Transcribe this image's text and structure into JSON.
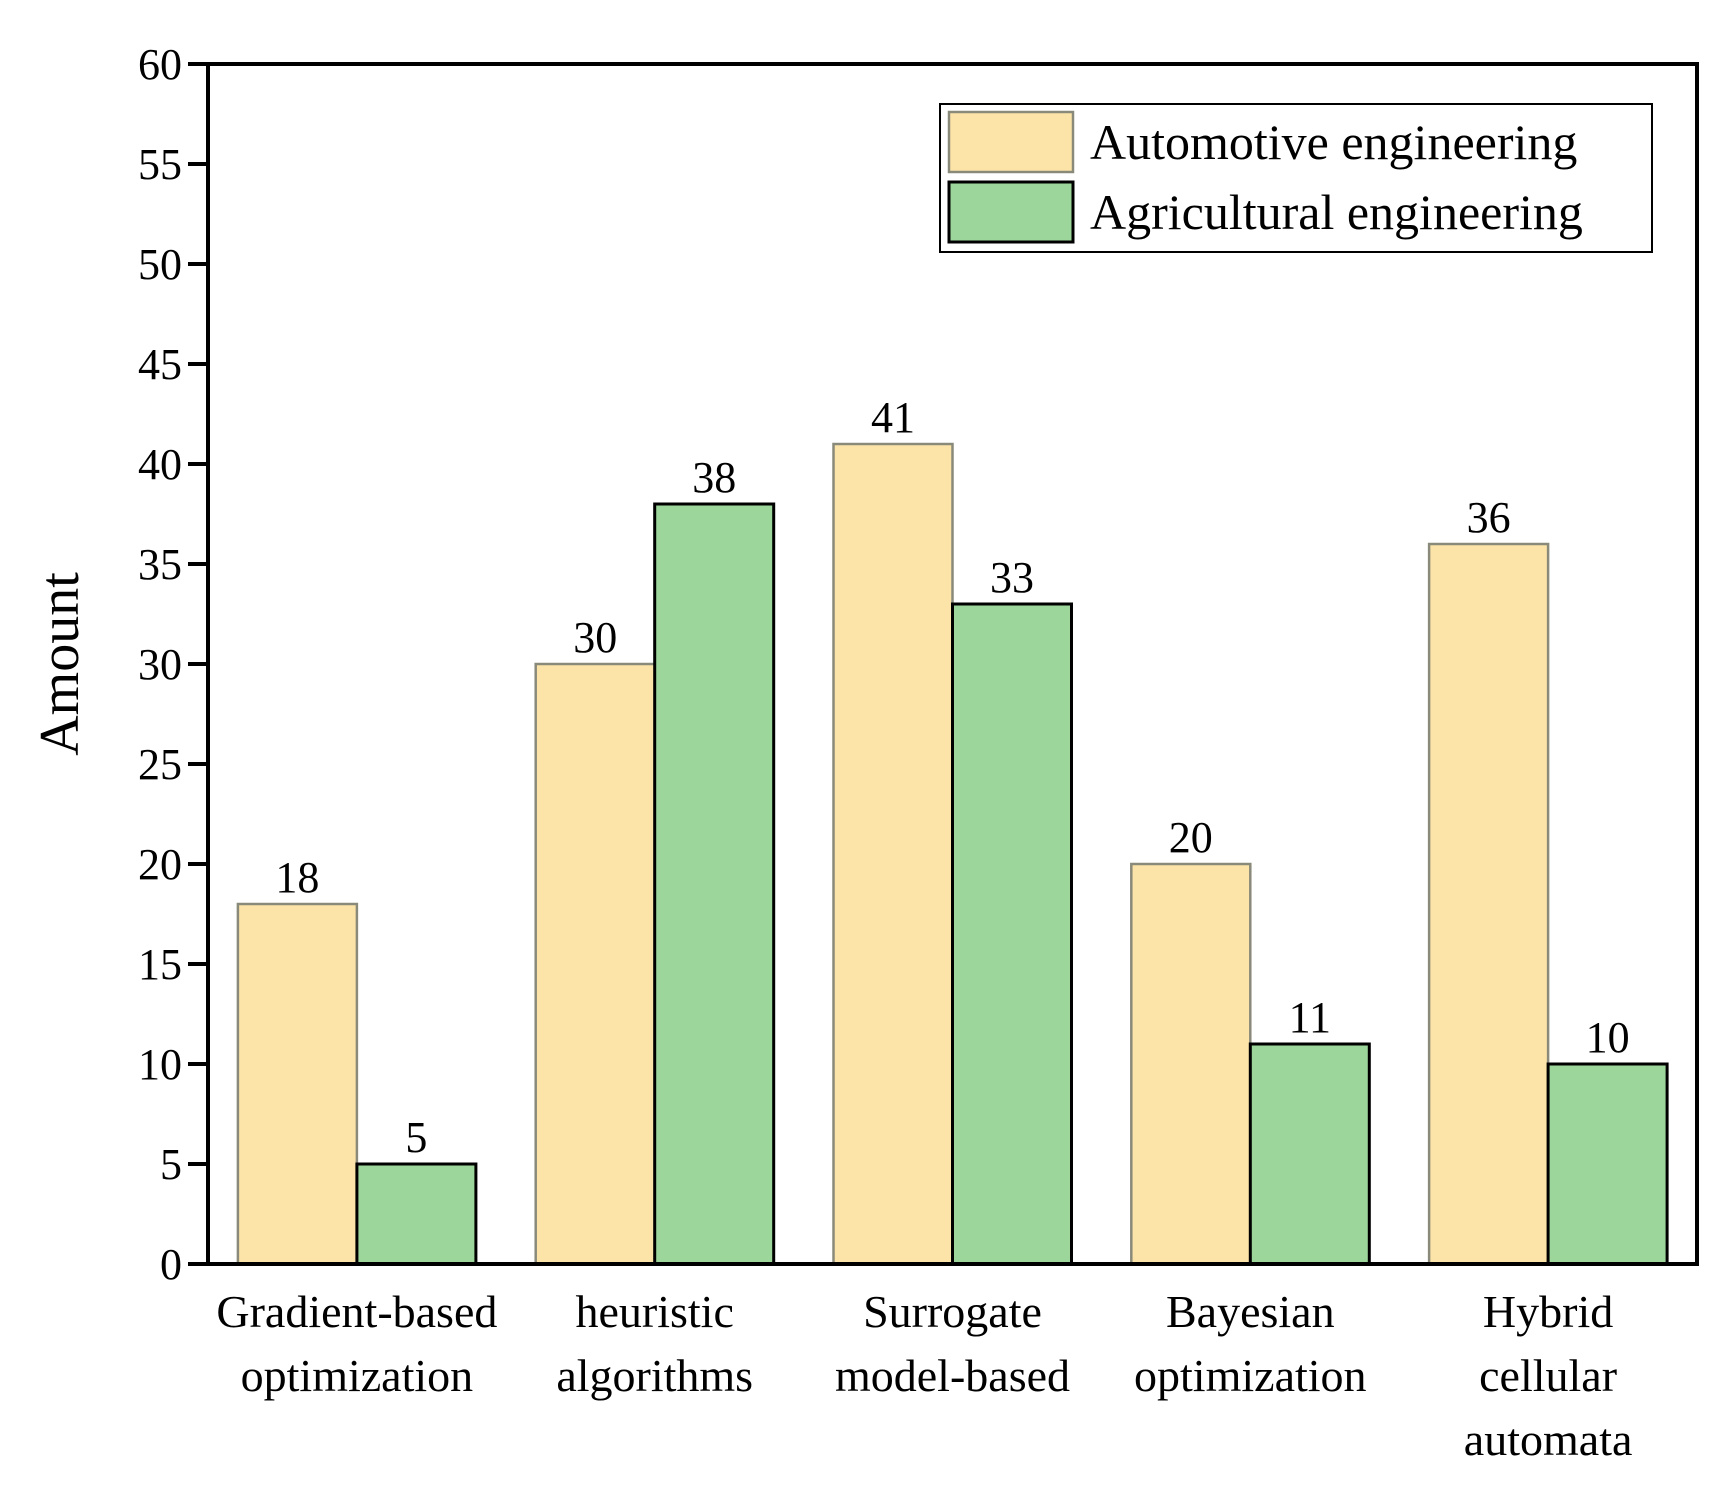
{
  "chart_data": {
    "type": "bar",
    "title": "",
    "xlabel": "",
    "ylabel": "Amount",
    "ylim": [
      0,
      60
    ],
    "yticks": [
      0,
      5,
      10,
      15,
      20,
      25,
      30,
      35,
      40,
      45,
      50,
      55,
      60
    ],
    "categories": [
      [
        "Gradient-based",
        "optimization"
      ],
      [
        "heuristic",
        "algorithms"
      ],
      [
        "Surrogate",
        "model-based"
      ],
      [
        "Bayesian",
        "optimization"
      ],
      [
        "Hybrid",
        "cellular",
        "automata"
      ]
    ],
    "series": [
      {
        "name": "Automotive engineering",
        "color": "#FCE4A8",
        "values": [
          18,
          30,
          41,
          20,
          36
        ]
      },
      {
        "name": "Agricultural engineering",
        "color": "#9DD69B",
        "values": [
          5,
          38,
          33,
          11,
          10
        ]
      }
    ],
    "legend_position": "top-right",
    "grid": false
  }
}
